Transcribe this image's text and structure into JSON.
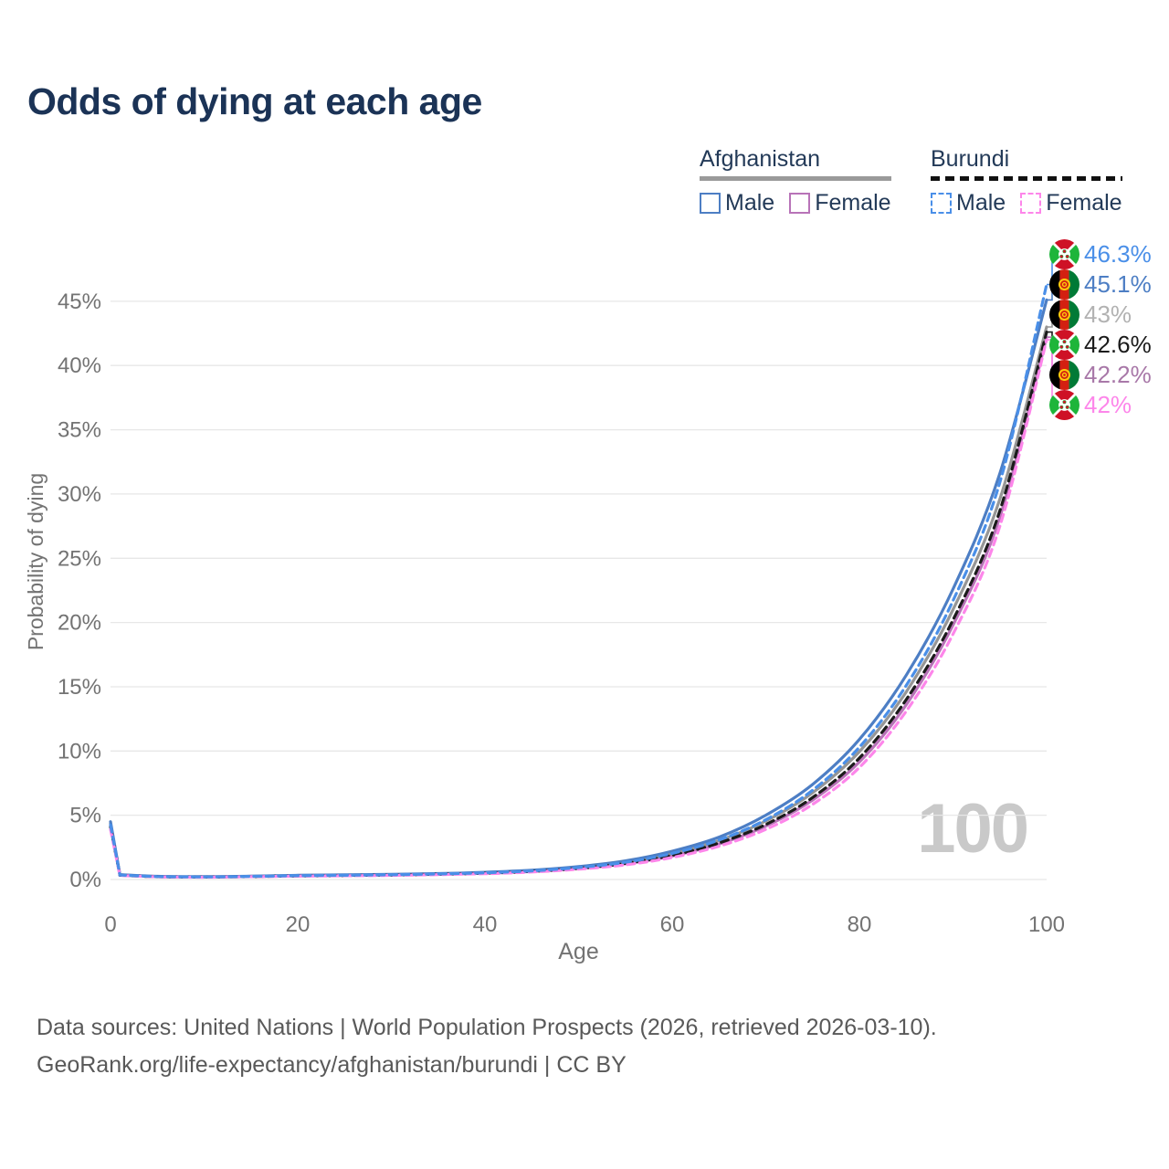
{
  "title": "Odds of dying at each age",
  "legend": {
    "groups": [
      {
        "name": "Afghanistan",
        "line_style": "solid",
        "combined_color": "#9a9a9a",
        "items": [
          {
            "label": "Male",
            "color": "#4d7ec4",
            "checked": false
          },
          {
            "label": "Female",
            "color": "#b873b8",
            "checked": false
          }
        ]
      },
      {
        "name": "Burundi",
        "line_style": "dashed",
        "combined_color": "#1b1b1b",
        "items": [
          {
            "label": "Male",
            "color": "#4a8fe8",
            "checked": false
          },
          {
            "label": "Female",
            "color": "#fd86ea",
            "checked": false
          }
        ]
      }
    ]
  },
  "chart_data": {
    "type": "line",
    "title": "Odds of dying at each age",
    "xlabel": "Age",
    "ylabel": "Probability of dying",
    "x_ticks": [
      0,
      20,
      40,
      60,
      80,
      100
    ],
    "y_ticks_percent": [
      0,
      5,
      10,
      15,
      20,
      25,
      30,
      35,
      40,
      45
    ],
    "xlim": [
      0,
      100
    ],
    "ylim_percent": [
      0,
      47
    ],
    "grid": "horizontal",
    "legend_position": "top-right",
    "age_counter": "100",
    "ages": [
      0,
      1,
      5,
      10,
      15,
      20,
      25,
      30,
      35,
      40,
      45,
      50,
      55,
      60,
      65,
      70,
      75,
      80,
      85,
      90,
      95,
      100
    ],
    "series": [
      {
        "name": "Afghanistan Male",
        "country": "Afghanistan",
        "sex": "Male",
        "style": "solid",
        "color": "#4d7ec4",
        "end_value": 45.1,
        "end_label": "45.1%",
        "values": [
          4.5,
          0.38,
          0.25,
          0.22,
          0.26,
          0.33,
          0.36,
          0.4,
          0.46,
          0.56,
          0.72,
          1.0,
          1.45,
          2.2,
          3.3,
          5.0,
          7.4,
          10.9,
          15.9,
          22.6,
          31.6,
          45.1
        ]
      },
      {
        "name": "Afghanistan Female",
        "country": "Afghanistan",
        "sex": "Female",
        "style": "solid",
        "color": "#b873b8",
        "end_value": 42.2,
        "end_label": "42.2%",
        "values": [
          4.15,
          0.33,
          0.22,
          0.19,
          0.23,
          0.28,
          0.31,
          0.34,
          0.4,
          0.48,
          0.62,
          0.85,
          1.22,
          1.83,
          2.76,
          4.15,
          6.18,
          9.15,
          13.6,
          19.8,
          28.2,
          42.2
        ]
      },
      {
        "name": "Afghanistan",
        "country": "Afghanistan",
        "sex": "Both",
        "style": "solid",
        "color": "#969696",
        "end_value": 43.0,
        "end_label": "43%",
        "values": [
          4.35,
          0.36,
          0.24,
          0.21,
          0.25,
          0.31,
          0.34,
          0.38,
          0.44,
          0.53,
          0.68,
          0.94,
          1.35,
          2.02,
          3.03,
          4.55,
          6.75,
          9.95,
          14.6,
          21.0,
          29.6,
          43.0
        ]
      },
      {
        "name": "Burundi Male",
        "country": "Burundi",
        "sex": "Male",
        "style": "dashed",
        "color": "#4a8fe8",
        "end_value": 46.3,
        "end_label": "46.3%",
        "values": [
          4.25,
          0.35,
          0.23,
          0.2,
          0.24,
          0.3,
          0.33,
          0.37,
          0.43,
          0.52,
          0.67,
          0.93,
          1.34,
          2.03,
          3.07,
          4.65,
          6.95,
          10.3,
          15.1,
          21.7,
          30.9,
          46.3
        ]
      },
      {
        "name": "Burundi Female",
        "country": "Burundi",
        "sex": "Female",
        "style": "dashed",
        "color": "#fd86ea",
        "end_value": 42.0,
        "end_label": "42%",
        "values": [
          3.9,
          0.32,
          0.21,
          0.18,
          0.22,
          0.26,
          0.29,
          0.32,
          0.38,
          0.45,
          0.58,
          0.8,
          1.14,
          1.71,
          2.59,
          3.9,
          5.85,
          8.72,
          13.1,
          19.1,
          27.5,
          42.0
        ]
      },
      {
        "name": "Burundi",
        "country": "Burundi",
        "sex": "Both",
        "style": "dashed",
        "color": "#1b1b1b",
        "end_value": 42.6,
        "end_label": "42.6%",
        "values": [
          4.1,
          0.34,
          0.22,
          0.19,
          0.23,
          0.28,
          0.31,
          0.35,
          0.41,
          0.49,
          0.63,
          0.87,
          1.25,
          1.88,
          2.84,
          4.28,
          6.38,
          9.45,
          14.0,
          20.2,
          28.7,
          42.6
        ]
      }
    ],
    "end_labels": [
      {
        "value_label": "46.3%",
        "value": 46.3,
        "series": "Burundi Male",
        "flag": "burundi-flag",
        "color": "#4a8fe8"
      },
      {
        "value_label": "45.1%",
        "value": 45.1,
        "series": "Afghanistan Male",
        "flag": "afghanistan-flag",
        "color": "#4d7ec4"
      },
      {
        "value_label": "43%",
        "value": 43.0,
        "series": "Afghanistan",
        "flag": "afghanistan-flag",
        "color": "#b2b2b2"
      },
      {
        "value_label": "42.6%",
        "value": 42.6,
        "series": "Burundi",
        "flag": "burundi-flag",
        "color": "#1b1b1b"
      },
      {
        "value_label": "42.2%",
        "value": 42.2,
        "series": "Afghanistan Female",
        "flag": "afghanistan-flag",
        "color": "#a878a8"
      },
      {
        "value_label": "42%",
        "value": 42.0,
        "series": "Burundi Female",
        "flag": "burundi-flag",
        "color": "#fd86ea"
      }
    ]
  },
  "colors": {
    "title_text": "#1b3356",
    "legend_text": "#233a58",
    "axis_text": "#737373",
    "grid_line": "#e7e7e7",
    "watermark": "#c9c9c9",
    "footer_text": "#595959",
    "background": "#ffffff"
  },
  "footer": {
    "line1": "Data sources: United Nations | World Population Prospects (2026, retrieved 2026-03-10).",
    "line2": "GeoRank.org/life-expectancy/afghanistan/burundi | CC BY"
  }
}
